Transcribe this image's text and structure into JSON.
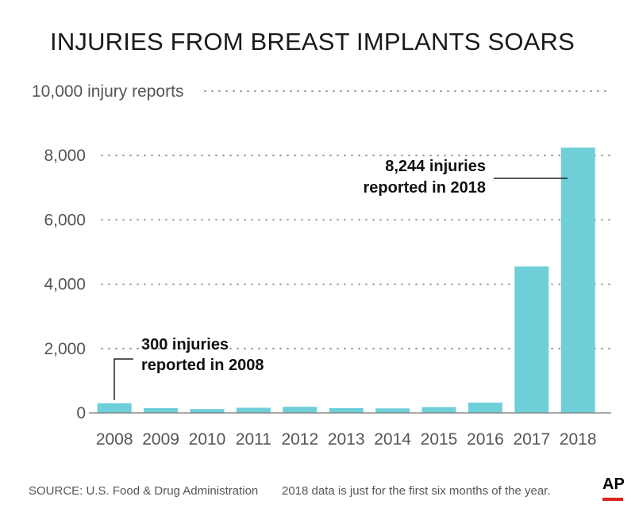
{
  "chart_data": {
    "type": "bar",
    "title": "INJURIES FROM BREAST IMPLANTS SOARS",
    "ylabel": "injury reports",
    "categories": [
      "2008",
      "2009",
      "2010",
      "2011",
      "2012",
      "2013",
      "2014",
      "2015",
      "2016",
      "2017",
      "2018"
    ],
    "values": [
      300,
      150,
      120,
      160,
      190,
      150,
      140,
      180,
      320,
      4550,
      8244
    ],
    "ylim": [
      0,
      10000
    ],
    "ytick_labels": [
      "0",
      "2,000",
      "4,000",
      "6,000",
      "8,000",
      "10,000 injury reports"
    ],
    "grid": "dotted horizontal",
    "bar_color": "#6ecfd9",
    "annotations": [
      {
        "lines": [
          "300 injuries",
          "reported in 2008"
        ],
        "category": "2008"
      },
      {
        "lines": [
          "8,244 injuries",
          "reported in 2018"
        ],
        "category": "2018"
      }
    ]
  },
  "footer": {
    "source": "SOURCE: U.S. Food & Drug Administration",
    "note": "2018 data is just for the first six months of the year.",
    "logo": "AP"
  },
  "colors": {
    "logo_red": "#d9261c"
  }
}
